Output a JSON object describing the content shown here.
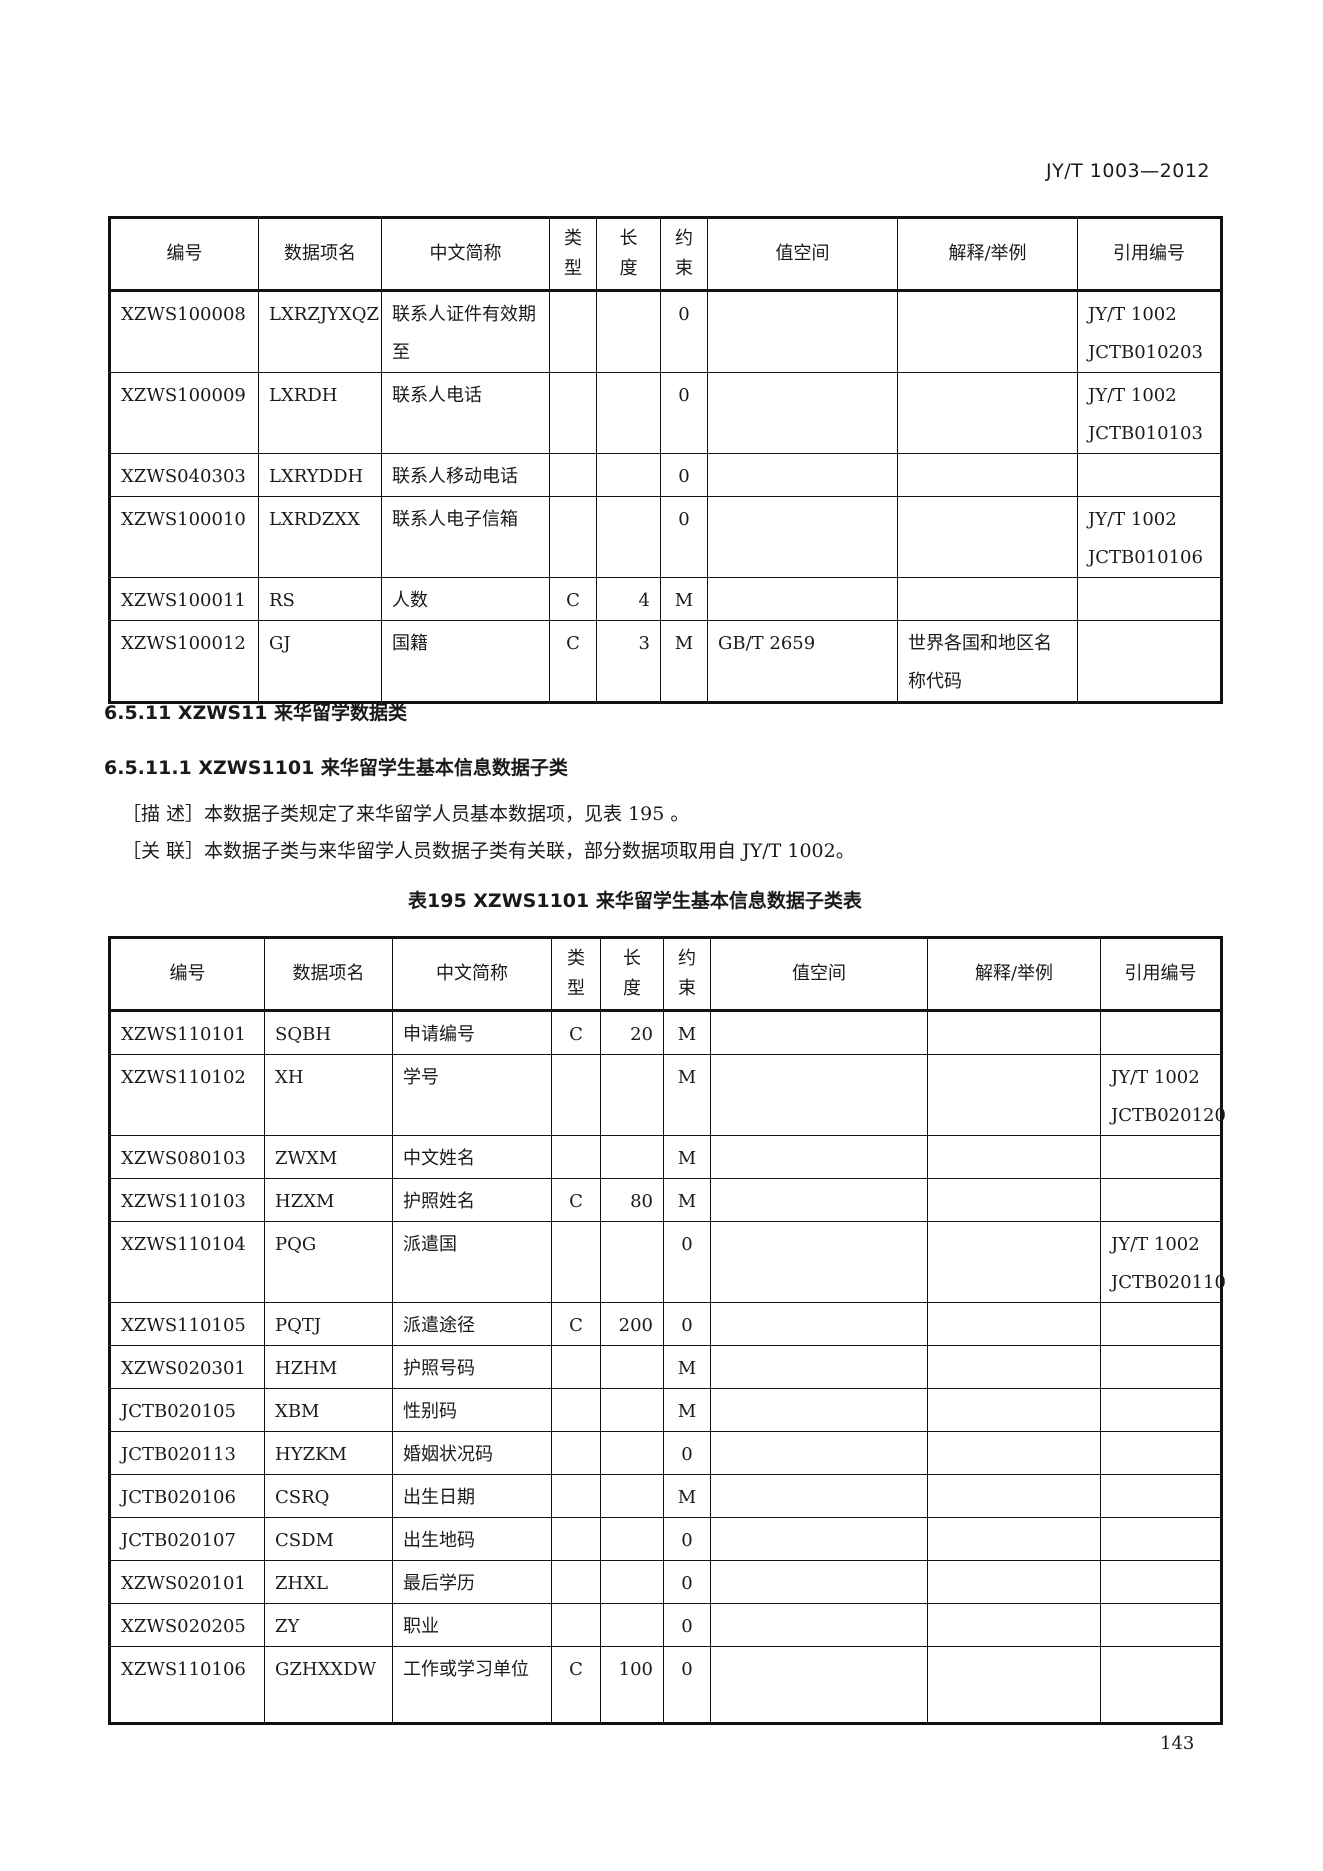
{
  "header": {
    "standard_code": "JY/T 1003—2012"
  },
  "columns": [
    "编号",
    "数据项名",
    "中文简称",
    "类\n型",
    "长\n度",
    "约\n束",
    "值空间",
    "解释/举例",
    "引用编号"
  ],
  "table1": {
    "rows": [
      [
        "XZWS100008",
        "LXRZJYXQZ",
        "联系人证件有效期至",
        "",
        "",
        "0",
        "",
        "",
        "JY/T 1002 JCTB010203"
      ],
      [
        "XZWS100009",
        "LXRDH",
        "联系人电话",
        "",
        "",
        "0",
        "",
        "",
        "JY/T 1002 JCTB010103"
      ],
      [
        "XZWS040303",
        "LXRYDDH",
        "联系人移动电话",
        "",
        "",
        "0",
        "",
        "",
        ""
      ],
      [
        "XZWS100010",
        "LXRDZXX",
        "联系人电子信箱",
        "",
        "",
        "0",
        "",
        "",
        "JY/T 1002 JCTB010106"
      ],
      [
        "XZWS100011",
        "RS",
        "人数",
        "C",
        "4",
        "M",
        "",
        "",
        ""
      ],
      [
        "XZWS100012",
        "GJ",
        "国籍",
        "C",
        "3",
        "M",
        "GB/T 2659",
        "世界各国和地区名称代码",
        ""
      ]
    ]
  },
  "section": {
    "heading_1": "6.5.11   XZWS11  来华留学数据类",
    "heading_2": "6.5.11.1   XZWS1101  来华留学生基本信息数据子类",
    "describe": "［描 述］本数据子类规定了来华留学人员基本数据项，见表 195  。",
    "relation": "［关 联］本数据子类与来华留学人员数据子类有关联，部分数据项取用自 JY/T 1002。",
    "table_title": "表195   XZWS1101  来华留学生基本信息数据子类表"
  },
  "table2": {
    "rows": [
      [
        "XZWS110101",
        "SQBH",
        "申请编号",
        "C",
        "20",
        "M",
        "",
        "",
        ""
      ],
      [
        "XZWS110102",
        "XH",
        "学号",
        "",
        "",
        "M",
        "",
        "",
        "JY/T 1002 JCTB020120"
      ],
      [
        "XZWS080103",
        "ZWXM",
        "中文姓名",
        "",
        "",
        "M",
        "",
        "",
        ""
      ],
      [
        "XZWS110103",
        "HZXM",
        "护照姓名",
        "C",
        "80",
        "M",
        "",
        "",
        ""
      ],
      [
        "XZWS110104",
        "PQG",
        "派遣国",
        "",
        "",
        "0",
        "",
        "",
        "JY/T 1002 JCTB020110"
      ],
      [
        "XZWS110105",
        "PQTJ",
        "派遣途径",
        "C",
        "200",
        "0",
        "",
        "",
        ""
      ],
      [
        "XZWS020301",
        "HZHM",
        "护照号码",
        "",
        "",
        "M",
        "",
        "",
        ""
      ],
      [
        "JCTB020105",
        "XBM",
        "性别码",
        "",
        "",
        "M",
        "",
        "",
        ""
      ],
      [
        "JCTB020113",
        "HYZKM",
        "婚姻状况码",
        "",
        "",
        "0",
        "",
        "",
        ""
      ],
      [
        "JCTB020106",
        "CSRQ",
        "出生日期",
        "",
        "",
        "M",
        "",
        "",
        ""
      ],
      [
        "JCTB020107",
        "CSDM",
        "出生地码",
        "",
        "",
        "0",
        "",
        "",
        ""
      ],
      [
        "XZWS020101",
        "ZHXL",
        "最后学历",
        "",
        "",
        "0",
        "",
        "",
        ""
      ],
      [
        "XZWS020205",
        "ZY",
        "职业",
        "",
        "",
        "0",
        "",
        "",
        ""
      ],
      [
        "XZWS110106",
        "GZHXXDW",
        "工作或学习单位",
        "C",
        "100",
        "0",
        "",
        "",
        ""
      ]
    ]
  },
  "footer": {
    "page_number": "143"
  }
}
